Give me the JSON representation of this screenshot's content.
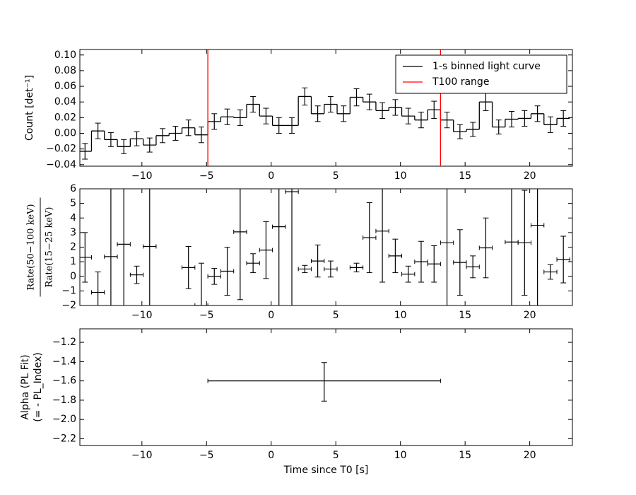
{
  "chart_data": [
    {
      "type": "step",
      "ylabel": "Count [det⁻¹]",
      "xlim": [
        -14.8,
        23.3
      ],
      "ylim": [
        -0.042,
        0.107
      ],
      "xticks": [
        {
          "value": -10,
          "label": "−10"
        },
        {
          "value": -5,
          "label": "−5"
        },
        0,
        5,
        10,
        15,
        20
      ],
      "yticks": [
        {
          "value": -0.04,
          "label": "−0.04"
        },
        {
          "value": -0.02,
          "label": "−0.02"
        },
        {
          "value": 0,
          "label": "0.00"
        },
        {
          "value": 0.02,
          "label": "0.02"
        },
        {
          "value": 0.04,
          "label": "0.04"
        },
        {
          "value": 0.06,
          "label": "0.06"
        },
        {
          "value": 0.08,
          "label": "0.08"
        },
        {
          "value": 0.1,
          "label": "0.10"
        }
      ],
      "xerr": 0.5,
      "x": [
        -14.4,
        -13.4,
        -12.4,
        -11.4,
        -10.4,
        -9.4,
        -8.4,
        -7.4,
        -6.4,
        -5.4,
        -4.4,
        -3.4,
        -2.4,
        -1.4,
        -0.4,
        0.6,
        1.6,
        2.6,
        3.6,
        4.6,
        5.6,
        6.6,
        7.6,
        8.6,
        9.6,
        10.6,
        11.6,
        12.6,
        13.6,
        14.6,
        15.6,
        16.6,
        17.6,
        18.6,
        19.6,
        20.6,
        21.6,
        22.6
      ],
      "series": [
        {
          "name": "1-s binned light curve",
          "color": "#000000",
          "values": [
            -0.023,
            0.003,
            -0.008,
            -0.017,
            -0.007,
            -0.015,
            -0.003,
            0.0,
            0.007,
            -0.002,
            0.015,
            0.021,
            0.02,
            0.037,
            0.022,
            0.01,
            0.01,
            0.047,
            0.025,
            0.037,
            0.025,
            0.046,
            0.04,
            0.029,
            0.033,
            0.022,
            0.017,
            0.03,
            0.017,
            0.002,
            0.005,
            0.04,
            0.008,
            0.018,
            0.019,
            0.025,
            0.011,
            0.019
          ],
          "errors": [
            0.01,
            0.01,
            0.009,
            0.009,
            0.009,
            0.009,
            0.009,
            0.009,
            0.01,
            0.01,
            0.01,
            0.01,
            0.01,
            0.01,
            0.01,
            0.01,
            0.01,
            0.011,
            0.01,
            0.01,
            0.01,
            0.011,
            0.01,
            0.01,
            0.01,
            0.01,
            0.01,
            0.011,
            0.01,
            0.009,
            0.009,
            0.011,
            0.009,
            0.01,
            0.01,
            0.01,
            0.01,
            0.01
          ]
        }
      ],
      "vlines": {
        "name": "T100 range",
        "color": "#ff0000",
        "x": [
          -4.9,
          13.1
        ]
      },
      "legend": "upper right"
    },
    {
      "type": "errorbar",
      "ylabel": [
        "Rate(50−100 keV)",
        "Rate(15−25 keV)"
      ],
      "ylabel_fraction": true,
      "xlim": [
        -14.8,
        23.3
      ],
      "ylim": [
        -2,
        6
      ],
      "xticks": [
        {
          "value": -10,
          "label": "−10"
        },
        {
          "value": -5,
          "label": "−5"
        },
        0,
        5,
        10,
        15,
        20
      ],
      "yticks": [
        {
          "value": -2,
          "label": "−2"
        },
        {
          "value": -1,
          "label": "−1"
        },
        0,
        1,
        2,
        3,
        4,
        5,
        6
      ],
      "color": "#000000",
      "xerr": 0.5,
      "x": [
        -14.4,
        -13.4,
        -12.4,
        -11.4,
        -10.4,
        -9.4,
        -6.4,
        -5.4,
        -4.4,
        -3.4,
        -2.4,
        -1.4,
        -0.4,
        0.6,
        1.6,
        2.6,
        3.6,
        4.6,
        6.6,
        7.6,
        8.6,
        9.6,
        10.6,
        11.6,
        12.6,
        13.6,
        14.6,
        15.6,
        16.6,
        18.6,
        19.6,
        20.6,
        21.6,
        22.6
      ],
      "values": [
        1.3,
        -1.1,
        1.35,
        2.2,
        0.1,
        2.05,
        0.6,
        -2.0,
        0.0,
        0.35,
        3.05,
        0.9,
        1.8,
        3.4,
        5.8,
        0.5,
        1.05,
        0.5,
        0.6,
        2.65,
        3.1,
        1.4,
        0.15,
        1.0,
        0.85,
        2.3,
        0.95,
        0.65,
        1.95,
        2.35,
        2.3,
        3.5,
        0.3,
        1.15
      ],
      "errors": [
        1.7,
        1.4,
        10,
        10,
        0.6,
        10,
        1.45,
        2.9,
        0.55,
        1.65,
        4.65,
        0.65,
        1.95,
        10,
        10,
        0.25,
        1.1,
        0.55,
        0.3,
        2.4,
        3.5,
        1.15,
        0.55,
        1.4,
        1.25,
        10,
        2.25,
        0.75,
        2.05,
        10,
        3.6,
        10,
        0.5,
        1.6
      ]
    },
    {
      "type": "errorbar",
      "ylabel": [
        "Alpha (PL Fit)",
        "(= - PL_Index)"
      ],
      "ylabel_fraction": false,
      "xlabel": "Time since T0 [s]",
      "xlim": [
        -14.8,
        23.3
      ],
      "ylim": [
        -2.27,
        -1.06
      ],
      "xticks": [
        {
          "value": -10,
          "label": "−10"
        },
        {
          "value": -5,
          "label": "−5"
        },
        0,
        5,
        10,
        15,
        20
      ],
      "yticks": [
        {
          "value": -2.2,
          "label": "−2.2"
        },
        {
          "value": -2.0,
          "label": "−2.0"
        },
        {
          "value": -1.8,
          "label": "−1.8"
        },
        {
          "value": -1.6,
          "label": "−1.6"
        },
        {
          "value": -1.4,
          "label": "−1.4"
        },
        {
          "value": -1.2,
          "label": "−1.2"
        }
      ],
      "color": "#000000",
      "xerr": 9,
      "x": [
        4.1
      ],
      "values": [
        -1.6
      ],
      "errors_minus": [
        0.21
      ],
      "errors_plus": [
        0.19
      ]
    }
  ]
}
